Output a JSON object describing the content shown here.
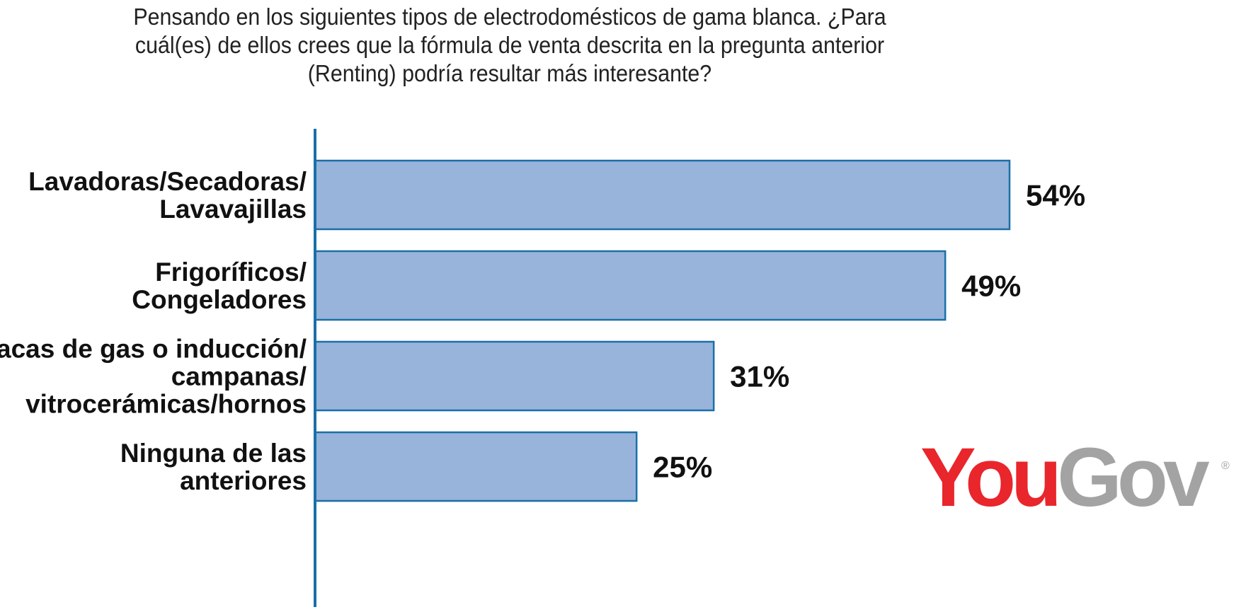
{
  "chart_data": {
    "type": "bar",
    "orientation": "horizontal",
    "title_lines": [
      "Pensando en los siguientes tipos de electrodomésticos de gama blanca. ¿Para",
      "cuál(es) de ellos crees que la fórmula de venta descrita en la pregunta anterior",
      "(Renting) podría resultar más interesante?"
    ],
    "categories": [
      [
        "Lavadoras/Secadoras/",
        "Lavavajillas"
      ],
      [
        "Frigoríficos/",
        "Congeladores"
      ],
      [
        "Placas de gas o inducción/",
        "campanas/",
        "vitrocerámicas/hornos"
      ],
      [
        "Ninguna de las",
        "anteriores"
      ]
    ],
    "values": [
      54,
      49,
      31,
      25
    ],
    "value_labels": [
      "54%",
      "49%",
      "31%",
      "25%"
    ],
    "xlim": [
      0,
      60
    ],
    "grid": false,
    "legend": "none",
    "colors": {
      "bar_fill": "#98b4da",
      "bar_stroke": "#1a6fa8",
      "axis": "#1a6fa8",
      "text": "#111111"
    }
  },
  "logo": {
    "part1": "You",
    "part2": "Gov",
    "mark": "®",
    "colors": {
      "part1": "#e8262b",
      "part2": "#a3a3a3",
      "mark": "#a3a3a3"
    }
  }
}
